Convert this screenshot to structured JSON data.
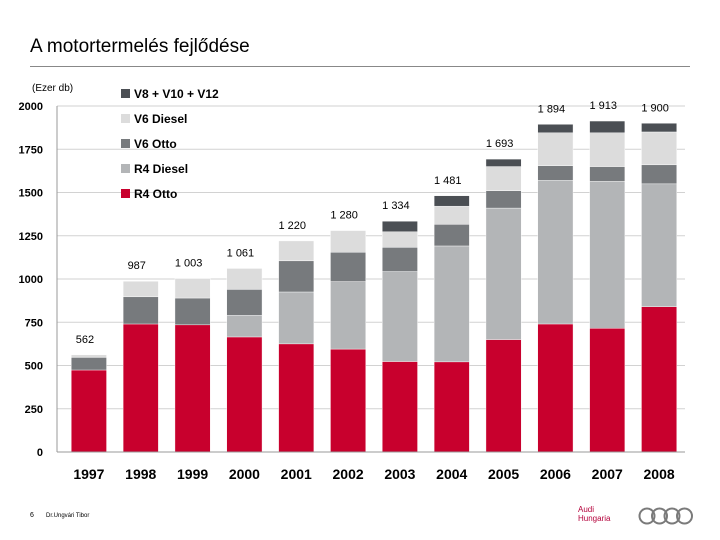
{
  "slide": {
    "title": "A motortermelés fejlődése",
    "page_number": "6",
    "footer_name": "Dr.Ungvári Tibor",
    "brand_line1": "Audi",
    "brand_line2": "Hungaria",
    "logo": "audi-four-rings"
  },
  "colors": {
    "V8 + V10 + V12": "#4b4f54",
    "V6 Diesel": "#dcdcdc",
    "V6 Otto": "#777a7d",
    "R4 Diesel": "#b3b5b7",
    "R4 Otto": "#c8002d"
  },
  "chart_data": {
    "type": "bar",
    "stacked": true,
    "title": "",
    "ylabel": "(Ezer db)",
    "xlabel": "",
    "ylim": [
      0,
      2000
    ],
    "yticks": [
      0,
      250,
      500,
      750,
      1000,
      1250,
      1500,
      1750,
      2000
    ],
    "grid": true,
    "legend_position": "top-left",
    "categories": [
      "1997",
      "1998",
      "1999",
      "2000",
      "2001",
      "2002",
      "2003",
      "2004",
      "2005",
      "2006",
      "2007",
      "2008"
    ],
    "series": [
      {
        "name": "R4 Otto",
        "values": [
          474,
          740,
          735,
          665,
          625,
          595,
          523,
          521,
          650,
          740,
          715,
          840
        ]
      },
      {
        "name": "R4 Diesel",
        "values": [
          0,
          0,
          0,
          125,
          300,
          390,
          520,
          670,
          760,
          830,
          850,
          710
        ]
      },
      {
        "name": "V6 Otto",
        "values": [
          73,
          157,
          155,
          150,
          180,
          170,
          140,
          125,
          100,
          85,
          85,
          110
        ]
      },
      {
        "name": "V6 Diesel",
        "values": [
          15,
          90,
          113,
          121,
          115,
          125,
          90,
          105,
          140,
          190,
          195,
          190
        ]
      },
      {
        "name": "V8 + V10 + V12",
        "values": [
          0,
          0,
          0,
          0,
          0,
          0,
          61,
          60,
          43,
          49,
          68,
          50
        ]
      }
    ],
    "legend_order": [
      "V8 + V10 + V12",
      "V6 Diesel",
      "V6 Otto",
      "R4 Diesel",
      "R4 Otto"
    ],
    "totals": [
      "562",
      "987",
      "1 003",
      "1 061",
      "1 220",
      "1 280",
      "1 334",
      "1 481",
      "1 693",
      "1 894",
      "1 913",
      "1 900"
    ],
    "total_values": [
      562,
      987,
      1003,
      1061,
      1220,
      1280,
      1334,
      1481,
      1693,
      1894,
      1913,
      1900
    ]
  }
}
